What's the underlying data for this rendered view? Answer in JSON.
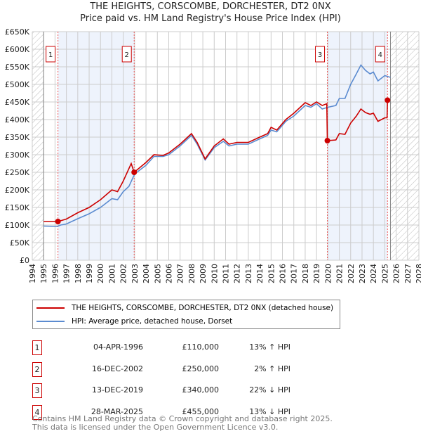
{
  "chart_data": {
    "type": "line",
    "title": "THE HEIGHTS, CORSCOMBE, DORCHESTER, DT2 0NX",
    "subtitle": "Price paid vs. HM Land Registry's House Price Index (HPI)",
    "xlim": [
      1994,
      2028
    ],
    "ylim": [
      0,
      650000
    ],
    "x_ticks": [
      "1994",
      "1995",
      "1996",
      "1997",
      "1998",
      "1999",
      "2000",
      "2001",
      "2002",
      "2003",
      "2004",
      "2005",
      "2006",
      "2007",
      "2008",
      "2009",
      "2010",
      "2011",
      "2012",
      "2013",
      "2014",
      "2015",
      "2016",
      "2017",
      "2018",
      "2019",
      "2020",
      "2021",
      "2022",
      "2023",
      "2024",
      "2025",
      "2026",
      "2027",
      "2028"
    ],
    "y_ticks": [
      {
        "v": 0,
        "label": "£0"
      },
      {
        "v": 50000,
        "label": "£50K"
      },
      {
        "v": 100000,
        "label": "£100K"
      },
      {
        "v": 150000,
        "label": "£150K"
      },
      {
        "v": 200000,
        "label": "£200K"
      },
      {
        "v": 250000,
        "label": "£250K"
      },
      {
        "v": 300000,
        "label": "£300K"
      },
      {
        "v": 350000,
        "label": "£350K"
      },
      {
        "v": 400000,
        "label": "£400K"
      },
      {
        "v": 450000,
        "label": "£450K"
      },
      {
        "v": 500000,
        "label": "£500K"
      },
      {
        "v": 550000,
        "label": "£550K"
      },
      {
        "v": 600000,
        "label": "£600K"
      },
      {
        "v": 650000,
        "label": "£650K"
      }
    ],
    "grid": true,
    "data_range": [
      1995,
      2025.5
    ],
    "shaded_ranges": [
      [
        1996.26,
        2002.96
      ],
      [
        2019.95,
        2025.24
      ]
    ],
    "series": [
      {
        "name": "THE HEIGHTS, CORSCOMBE, DORCHESTER, DT2 0NX (detached house)",
        "color": "#cc0000",
        "x": [
          1995,
          1996.26,
          1997,
          1998,
          1999,
          2000,
          2001,
          2001.5,
          2002,
          2002.7,
          2002.96,
          2004,
          2004.7,
          2005.5,
          2006,
          2007,
          2008,
          2008.5,
          2009.2,
          2010,
          2010.8,
          2011.3,
          2012,
          2013,
          2014,
          2014.7,
          2015,
          2015.5,
          2016.3,
          2017,
          2018,
          2018.5,
          2019,
          2019.5,
          2019.9,
          2019.95,
          2020.7,
          2021,
          2021.5,
          2022,
          2022.5,
          2022.9,
          2023.3,
          2023.7,
          2024,
          2024.4,
          2025,
          2025.2,
          2025.24,
          2025.3
        ],
        "y": [
          110000,
          110000,
          117000,
          135000,
          150000,
          172000,
          200000,
          195000,
          225000,
          275000,
          250000,
          278000,
          300000,
          298000,
          305000,
          330000,
          360000,
          335000,
          288000,
          325000,
          345000,
          330000,
          335000,
          335000,
          350000,
          360000,
          378000,
          370000,
          400000,
          418000,
          448000,
          440000,
          450000,
          440000,
          445000,
          340000,
          342000,
          360000,
          358000,
          390000,
          410000,
          430000,
          420000,
          415000,
          418000,
          395000,
          405000,
          405000,
          455000,
          452000
        ]
      },
      {
        "name": "HPI: Average price, detached house, Dorset",
        "color": "#5b8bd0",
        "x": [
          1995,
          1996.2,
          1996.5,
          1997,
          1998,
          1999,
          2000,
          2001,
          2001.5,
          2002,
          2002.5,
          2003,
          2004,
          2004.7,
          2005.5,
          2006,
          2007,
          2008,
          2008.5,
          2009.2,
          2010,
          2010.8,
          2011.3,
          2012,
          2013,
          2014,
          2014.7,
          2015,
          2015.5,
          2016.3,
          2017,
          2018,
          2018.5,
          2019,
          2019.5,
          2020,
          2020.7,
          2021,
          2021.5,
          2022,
          2022.5,
          2022.9,
          2023.3,
          2023.7,
          2024,
          2024.4,
          2025,
          2025.5
        ],
        "y": [
          97000,
          96000,
          100000,
          103000,
          118000,
          132000,
          150000,
          175000,
          172000,
          195000,
          210000,
          245000,
          270000,
          295000,
          295000,
          300000,
          325000,
          355000,
          330000,
          285000,
          320000,
          338000,
          325000,
          330000,
          330000,
          345000,
          355000,
          370000,
          365000,
          395000,
          410000,
          440000,
          435000,
          445000,
          430000,
          435000,
          440000,
          460000,
          460000,
          500000,
          530000,
          555000,
          540000,
          530000,
          535000,
          510000,
          525000,
          520000
        ]
      }
    ],
    "sales": [
      {
        "num": "1",
        "x": 1996.26,
        "price": 110000,
        "date": "04-APR-1996",
        "price_label": "£110,000",
        "hpi": "13% ↑ HPI"
      },
      {
        "num": "2",
        "x": 2002.96,
        "price": 250000,
        "date": "16-DEC-2002",
        "price_label": "£250,000",
        "hpi": "2% ↑ HPI"
      },
      {
        "num": "3",
        "x": 2019.95,
        "price": 340000,
        "date": "13-DEC-2019",
        "price_label": "£340,000",
        "hpi": "22% ↓ HPI"
      },
      {
        "num": "4",
        "x": 2025.24,
        "price": 455000,
        "date": "28-MAR-2025",
        "price_label": "£455,000",
        "hpi": "13% ↓ HPI"
      }
    ],
    "legend": [
      "THE HEIGHTS, CORSCOMBE, DORCHESTER, DT2 0NX (detached house)",
      "HPI: Average price, detached house, Dorset"
    ],
    "legend_position": "bottom"
  },
  "footer": [
    "Contains HM Land Registry data © Crown copyright and database right 2025.",
    "This data is licensed under the Open Government Licence v3.0."
  ]
}
